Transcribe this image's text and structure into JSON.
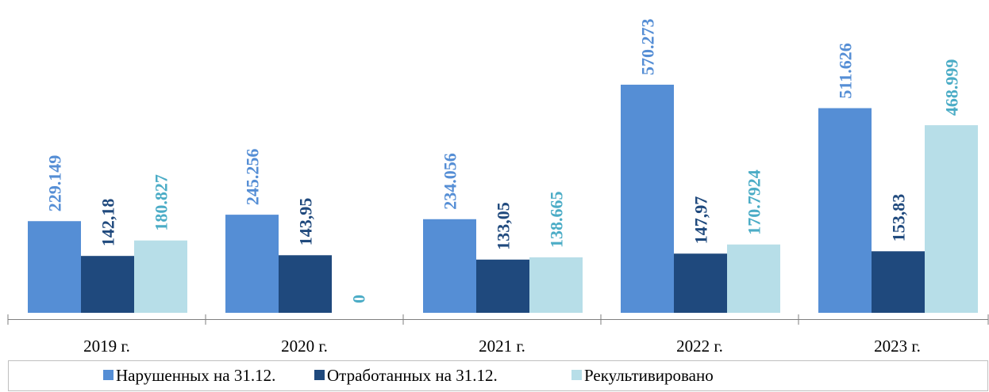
{
  "chart_data": {
    "type": "bar",
    "categories": [
      "2019 г.",
      "2020 г.",
      "2021 г.",
      "2022 г.",
      "2023 г."
    ],
    "series": [
      {
        "name": "Нарушенных на 31.12.",
        "color": "#558ed5",
        "label_color": "#558ed5",
        "values": [
          229.149,
          245.256,
          234.056,
          570.273,
          511.626
        ]
      },
      {
        "name": "Отработанных на 31.12.",
        "color": "#1f497d",
        "label_color": "#1f497d",
        "values": [
          142.18,
          143.95,
          133.05,
          147.97,
          153.83
        ],
        "value_labels": [
          "142,18",
          "143,95",
          "133,05",
          "147,97",
          "153,83"
        ]
      },
      {
        "name": "Рекультивировано",
        "color": "#b7dee8",
        "label_color": "#4bacc6",
        "values": [
          180.827,
          0,
          138.665,
          170.7924,
          468.999
        ]
      }
    ],
    "ylim": [
      0,
      780
    ],
    "legend": "bottom"
  }
}
